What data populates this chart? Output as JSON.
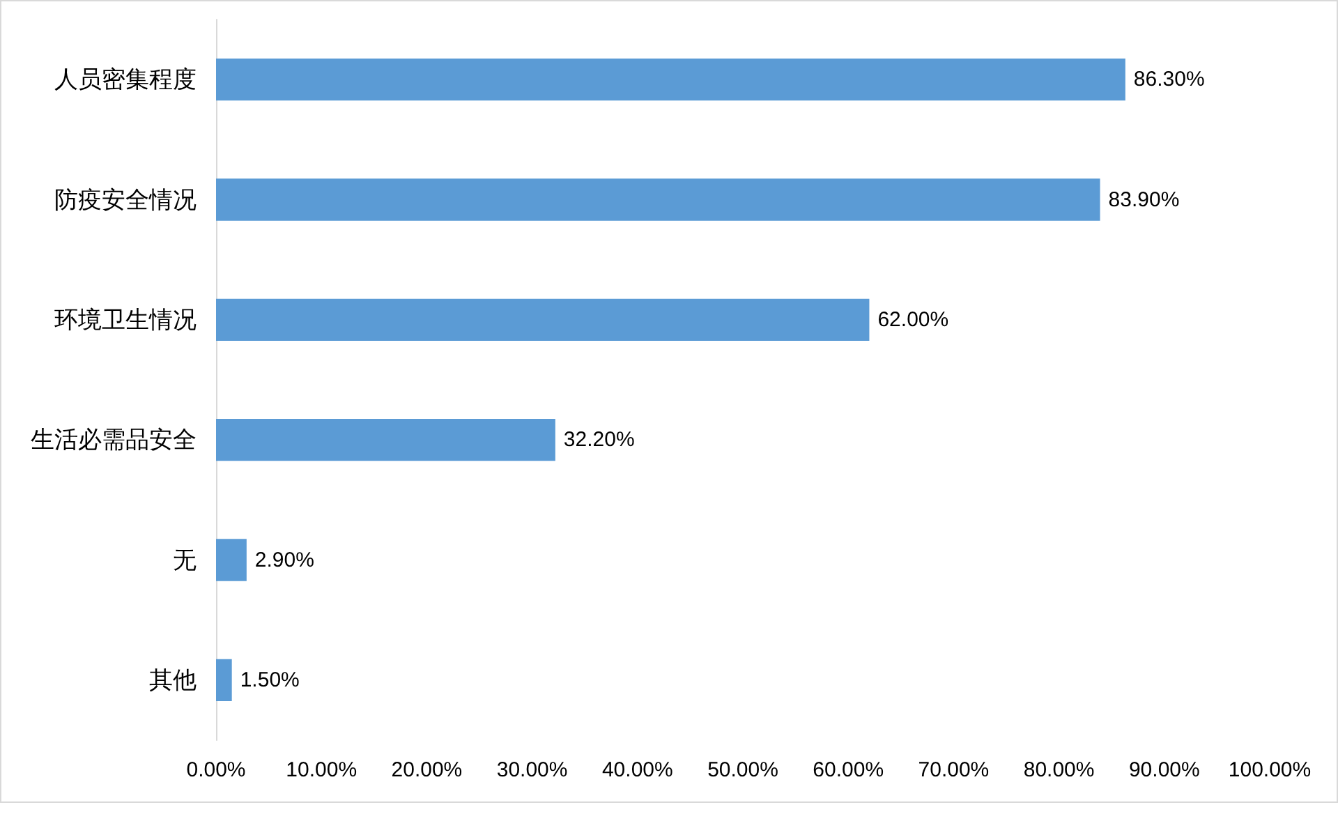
{
  "chart_data": {
    "type": "bar",
    "orientation": "horizontal",
    "categories": [
      "人员密集程度",
      "防疫安全情况",
      "环境卫生情况",
      "生活必需品安全",
      "无",
      "其他"
    ],
    "values": [
      86.3,
      83.9,
      62.0,
      32.2,
      2.9,
      1.5
    ],
    "value_labels": [
      "86.30%",
      "83.90%",
      "62.00%",
      "32.20%",
      "2.90%",
      "1.50%"
    ],
    "color": "#5b9bd5",
    "xlim": [
      0,
      100
    ],
    "xticks": [
      {
        "value": 0,
        "label": "0.00%"
      },
      {
        "value": 10,
        "label": "10.00%"
      },
      {
        "value": 20,
        "label": "20.00%"
      },
      {
        "value": 30,
        "label": "30.00%"
      },
      {
        "value": 40,
        "label": "40.00%"
      },
      {
        "value": 50,
        "label": "50.00%"
      },
      {
        "value": 60,
        "label": "60.00%"
      },
      {
        "value": 70,
        "label": "70.00%"
      },
      {
        "value": 80,
        "label": "80.00%"
      },
      {
        "value": 90,
        "label": "90.00%"
      },
      {
        "value": 100,
        "label": "100.00%"
      }
    ],
    "grid": false
  }
}
